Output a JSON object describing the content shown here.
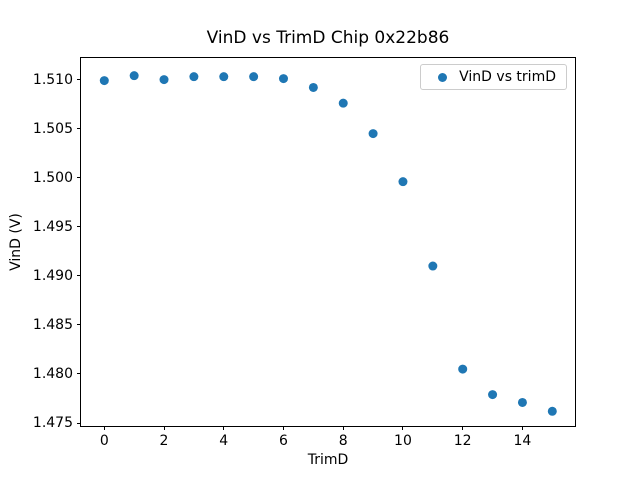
{
  "chart_data": {
    "type": "scatter",
    "title": "VinD vs TrimD Chip 0x22b86",
    "xlabel": "TrimD",
    "ylabel": "VinD (V)",
    "legend": {
      "label": "VinD vs trimD",
      "position": "upper right"
    },
    "marker_color": "#1f77b4",
    "marker_diameter_px": 9,
    "grid": false,
    "background": "#ffffff",
    "x": [
      0,
      1,
      2,
      3,
      4,
      5,
      6,
      7,
      8,
      9,
      10,
      11,
      12,
      13,
      14,
      15
    ],
    "y": [
      1.5099,
      1.5104,
      1.51,
      1.5103,
      1.5103,
      1.5103,
      1.5101,
      1.5092,
      1.5076,
      1.5045,
      1.4996,
      1.491,
      1.4805,
      1.4779,
      1.4771,
      1.4762
    ],
    "xlim": [
      -0.78,
      15.76
    ],
    "ylim": [
      1.4747,
      1.5122
    ],
    "xticks": [
      0,
      2,
      4,
      6,
      8,
      10,
      12,
      14
    ],
    "yticks": [
      1.475,
      1.48,
      1.485,
      1.49,
      1.495,
      1.5,
      1.505,
      1.51
    ],
    "ytick_decimals": 3
  }
}
